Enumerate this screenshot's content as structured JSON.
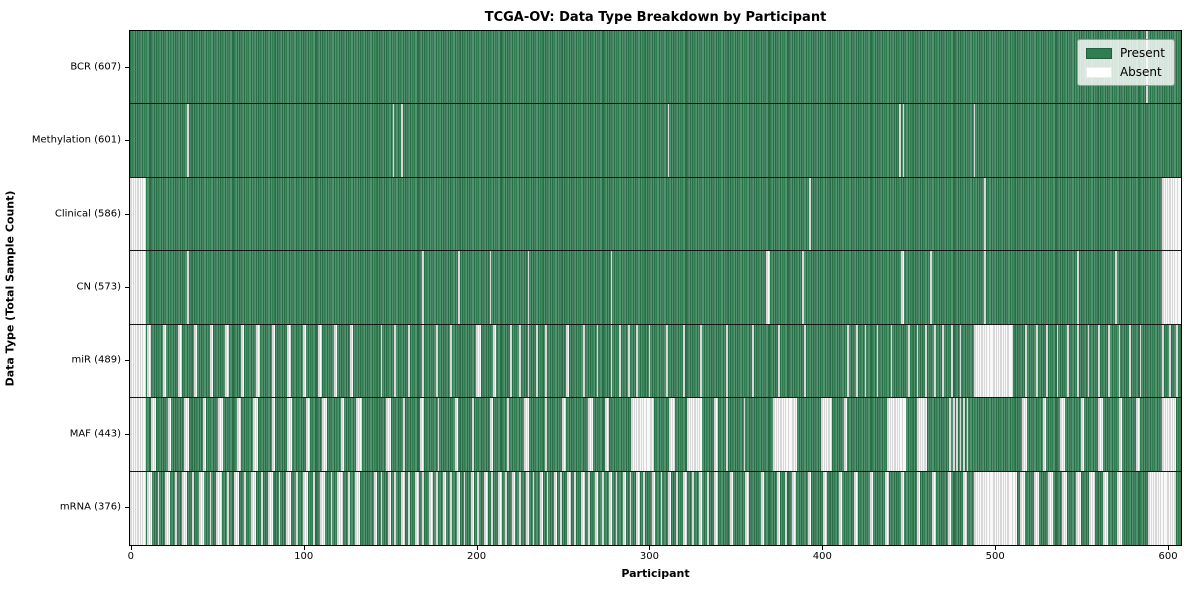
{
  "chart_data": {
    "type": "heatmap",
    "title": "TCGA-OV: Data Type Breakdown by Participant",
    "xlabel": "Participant",
    "ylabel": "Data Type (Total Sample Count)",
    "x_ticks": [
      0,
      100,
      200,
      300,
      400,
      500,
      600
    ],
    "x_range": [
      0,
      608
    ],
    "total_participants": 608,
    "grid": false,
    "legend_position": "upper right",
    "legend": [
      {
        "label": "Present",
        "color": "#2f7e52"
      },
      {
        "label": "Absent",
        "color": "#ffffff"
      }
    ],
    "colors": {
      "present": "#2f7e52",
      "absent": "#ffffff"
    },
    "rows": [
      {
        "data_type": "BCR",
        "label": "BCR (607)",
        "present_count": 607,
        "absent_ranges": [
          [
            588,
            588
          ]
        ]
      },
      {
        "data_type": "Methylation",
        "label": "Methylation (601)",
        "present_count": 601,
        "absent_ranges": [
          [
            33,
            33
          ],
          [
            152,
            152
          ],
          [
            157,
            157
          ],
          [
            311,
            311
          ],
          [
            445,
            445
          ],
          [
            447,
            447
          ],
          [
            488,
            488
          ]
        ]
      },
      {
        "data_type": "Clinical",
        "label": "Clinical (586)",
        "present_count": 586,
        "absent_ranges": [
          [
            0,
            8
          ],
          [
            393,
            393
          ],
          [
            494,
            494
          ],
          [
            597,
            607
          ]
        ]
      },
      {
        "data_type": "CN",
        "label": "CN (573)",
        "present_count": 573,
        "absent_ranges": [
          [
            0,
            8
          ],
          [
            33,
            33
          ],
          [
            169,
            169
          ],
          [
            190,
            190
          ],
          [
            208,
            208
          ],
          [
            230,
            230
          ],
          [
            278,
            278
          ],
          [
            368,
            369
          ],
          [
            389,
            389
          ],
          [
            446,
            447
          ],
          [
            463,
            463
          ],
          [
            494,
            494
          ],
          [
            548,
            548
          ],
          [
            570,
            570
          ],
          [
            597,
            607
          ]
        ]
      },
      {
        "data_type": "miR",
        "label": "miR (489)",
        "present_count": 489,
        "absent_ranges": [
          [
            0,
            8
          ],
          [
            10,
            11
          ],
          [
            19,
            20
          ],
          [
            28,
            29
          ],
          [
            37,
            38
          ],
          [
            46,
            47
          ],
          [
            55,
            56
          ],
          [
            64,
            65
          ],
          [
            73,
            74
          ],
          [
            82,
            83
          ],
          [
            91,
            92
          ],
          [
            100,
            101
          ],
          [
            109,
            110
          ],
          [
            118,
            119
          ],
          [
            127,
            128
          ],
          [
            145,
            145
          ],
          [
            153,
            153
          ],
          [
            161,
            161
          ],
          [
            169,
            169
          ],
          [
            177,
            177
          ],
          [
            185,
            185
          ],
          [
            200,
            202
          ],
          [
            210,
            211
          ],
          [
            220,
            220
          ],
          [
            225,
            225
          ],
          [
            230,
            230
          ],
          [
            235,
            235
          ],
          [
            240,
            240
          ],
          [
            252,
            253
          ],
          [
            262,
            262
          ],
          [
            270,
            270
          ],
          [
            278,
            278
          ],
          [
            283,
            283
          ],
          [
            288,
            288
          ],
          [
            293,
            293
          ],
          [
            300,
            300
          ],
          [
            310,
            310
          ],
          [
            320,
            320
          ],
          [
            330,
            330
          ],
          [
            345,
            345
          ],
          [
            360,
            360
          ],
          [
            375,
            375
          ],
          [
            390,
            390
          ],
          [
            415,
            415
          ],
          [
            420,
            420
          ],
          [
            425,
            425
          ],
          [
            432,
            432
          ],
          [
            440,
            440
          ],
          [
            450,
            450
          ],
          [
            455,
            455
          ],
          [
            460,
            460
          ],
          [
            465,
            465
          ],
          [
            470,
            470
          ],
          [
            475,
            475
          ],
          [
            480,
            480
          ],
          [
            488,
            510
          ],
          [
            518,
            518
          ],
          [
            524,
            524
          ],
          [
            530,
            530
          ],
          [
            536,
            536
          ],
          [
            542,
            542
          ],
          [
            548,
            548
          ],
          [
            554,
            554
          ],
          [
            560,
            560
          ],
          [
            566,
            566
          ],
          [
            572,
            572
          ],
          [
            578,
            578
          ],
          [
            584,
            584
          ],
          [
            597,
            597
          ],
          [
            601,
            601
          ],
          [
            605,
            605
          ]
        ]
      },
      {
        "data_type": "MAF",
        "label": "MAF (443)",
        "present_count": 443,
        "absent_ranges": [
          [
            0,
            8
          ],
          [
            12,
            14
          ],
          [
            22,
            23
          ],
          [
            31,
            33
          ],
          [
            42,
            43
          ],
          [
            51,
            53
          ],
          [
            62,
            63
          ],
          [
            71,
            73
          ],
          [
            82,
            83
          ],
          [
            91,
            93
          ],
          [
            102,
            103
          ],
          [
            111,
            113
          ],
          [
            122,
            123
          ],
          [
            131,
            133
          ],
          [
            148,
            150
          ],
          [
            158,
            158
          ],
          [
            168,
            169
          ],
          [
            178,
            178
          ],
          [
            188,
            189
          ],
          [
            198,
            198
          ],
          [
            208,
            209
          ],
          [
            218,
            218
          ],
          [
            228,
            230
          ],
          [
            240,
            240
          ],
          [
            250,
            251
          ],
          [
            265,
            267
          ],
          [
            275,
            276
          ],
          [
            290,
            302
          ],
          [
            312,
            314
          ],
          [
            322,
            330
          ],
          [
            338,
            339
          ],
          [
            345,
            345
          ],
          [
            355,
            355
          ],
          [
            372,
            385
          ],
          [
            400,
            405
          ],
          [
            413,
            414
          ],
          [
            438,
            448
          ],
          [
            455,
            460
          ],
          [
            474,
            474
          ],
          [
            476,
            476
          ],
          [
            478,
            478
          ],
          [
            480,
            480
          ],
          [
            482,
            482
          ],
          [
            484,
            484
          ],
          [
            516,
            518
          ],
          [
            528,
            529
          ],
          [
            538,
            540
          ],
          [
            550,
            551
          ],
          [
            560,
            562
          ],
          [
            572,
            573
          ],
          [
            582,
            583
          ],
          [
            597,
            604
          ]
        ]
      },
      {
        "data_type": "mRNA",
        "label": "mRNA (376)",
        "present_count": 376,
        "absent_ranges": [
          [
            0,
            8
          ],
          [
            10,
            12
          ],
          [
            16,
            16
          ],
          [
            20,
            22
          ],
          [
            26,
            26
          ],
          [
            30,
            32
          ],
          [
            36,
            36
          ],
          [
            40,
            42
          ],
          [
            46,
            46
          ],
          [
            50,
            52
          ],
          [
            56,
            56
          ],
          [
            60,
            62
          ],
          [
            66,
            66
          ],
          [
            70,
            72
          ],
          [
            76,
            76
          ],
          [
            80,
            82
          ],
          [
            86,
            86
          ],
          [
            90,
            92
          ],
          [
            96,
            96
          ],
          [
            100,
            102
          ],
          [
            106,
            106
          ],
          [
            110,
            112
          ],
          [
            116,
            116
          ],
          [
            120,
            122
          ],
          [
            126,
            126
          ],
          [
            130,
            132
          ],
          [
            141,
            142
          ],
          [
            145,
            145
          ],
          [
            149,
            150
          ],
          [
            153,
            153
          ],
          [
            157,
            158
          ],
          [
            161,
            161
          ],
          [
            165,
            166
          ],
          [
            169,
            169
          ],
          [
            173,
            174
          ],
          [
            177,
            177
          ],
          [
            181,
            182
          ],
          [
            185,
            185
          ],
          [
            189,
            190
          ],
          [
            193,
            193
          ],
          [
            197,
            198
          ],
          [
            201,
            201
          ],
          [
            205,
            206
          ],
          [
            209,
            209
          ],
          [
            213,
            214
          ],
          [
            217,
            217
          ],
          [
            221,
            222
          ],
          [
            225,
            225
          ],
          [
            229,
            230
          ],
          [
            233,
            233
          ],
          [
            237,
            238
          ],
          [
            241,
            241
          ],
          [
            245,
            246
          ],
          [
            249,
            249
          ],
          [
            253,
            254
          ],
          [
            257,
            257
          ],
          [
            261,
            262
          ],
          [
            265,
            265
          ],
          [
            269,
            270
          ],
          [
            273,
            273
          ],
          [
            277,
            278
          ],
          [
            281,
            281
          ],
          [
            285,
            286
          ],
          [
            289,
            289
          ],
          [
            293,
            294
          ],
          [
            297,
            297
          ],
          [
            302,
            303
          ],
          [
            307,
            307
          ],
          [
            311,
            312
          ],
          [
            316,
            316
          ],
          [
            320,
            321
          ],
          [
            325,
            325
          ],
          [
            329,
            330
          ],
          [
            334,
            334
          ],
          [
            338,
            339
          ],
          [
            347,
            348
          ],
          [
            356,
            357
          ],
          [
            365,
            366
          ],
          [
            374,
            375
          ],
          [
            379,
            379
          ],
          [
            383,
            384
          ],
          [
            392,
            393
          ],
          [
            401,
            402
          ],
          [
            410,
            411
          ],
          [
            419,
            420
          ],
          [
            428,
            429
          ],
          [
            437,
            438
          ],
          [
            446,
            447
          ],
          [
            455,
            456
          ],
          [
            464,
            465
          ],
          [
            473,
            474
          ],
          [
            482,
            483
          ],
          [
            488,
            512
          ],
          [
            515,
            517
          ],
          [
            523,
            525
          ],
          [
            531,
            533
          ],
          [
            539,
            541
          ],
          [
            547,
            549
          ],
          [
            555,
            557
          ],
          [
            563,
            565
          ],
          [
            571,
            573
          ],
          [
            589,
            604
          ]
        ]
      }
    ]
  }
}
